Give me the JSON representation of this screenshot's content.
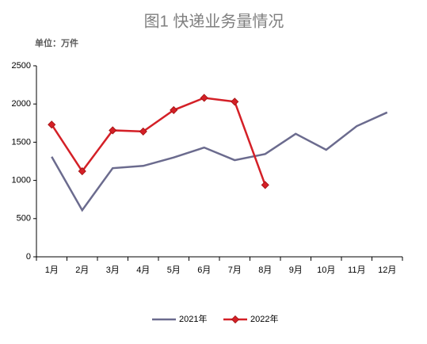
{
  "chart_data": {
    "type": "line",
    "title": "图1 快递业务量情况",
    "subtitle": "单位：万件",
    "categories": [
      "1月",
      "2月",
      "3月",
      "4月",
      "5月",
      "6月",
      "7月",
      "8月",
      "9月",
      "10月",
      "11月",
      "12月"
    ],
    "series": [
      {
        "name": "2021年",
        "color": "#6b6b8e",
        "marker": false,
        "values": [
          1310,
          610,
          1160,
          1190,
          1300,
          1430,
          1265,
          1345,
          1610,
          1400,
          1710,
          1890
        ]
      },
      {
        "name": "2022年",
        "color": "#d42027",
        "marker": true,
        "values": [
          1730,
          1120,
          1655,
          1640,
          1920,
          2080,
          2030,
          940,
          null,
          null,
          null,
          null
        ]
      }
    ],
    "ylim": [
      0,
      2500
    ],
    "yticks": [
      0,
      500,
      1000,
      1500,
      2000,
      2500
    ],
    "grid": false,
    "legend": "bottom"
  }
}
